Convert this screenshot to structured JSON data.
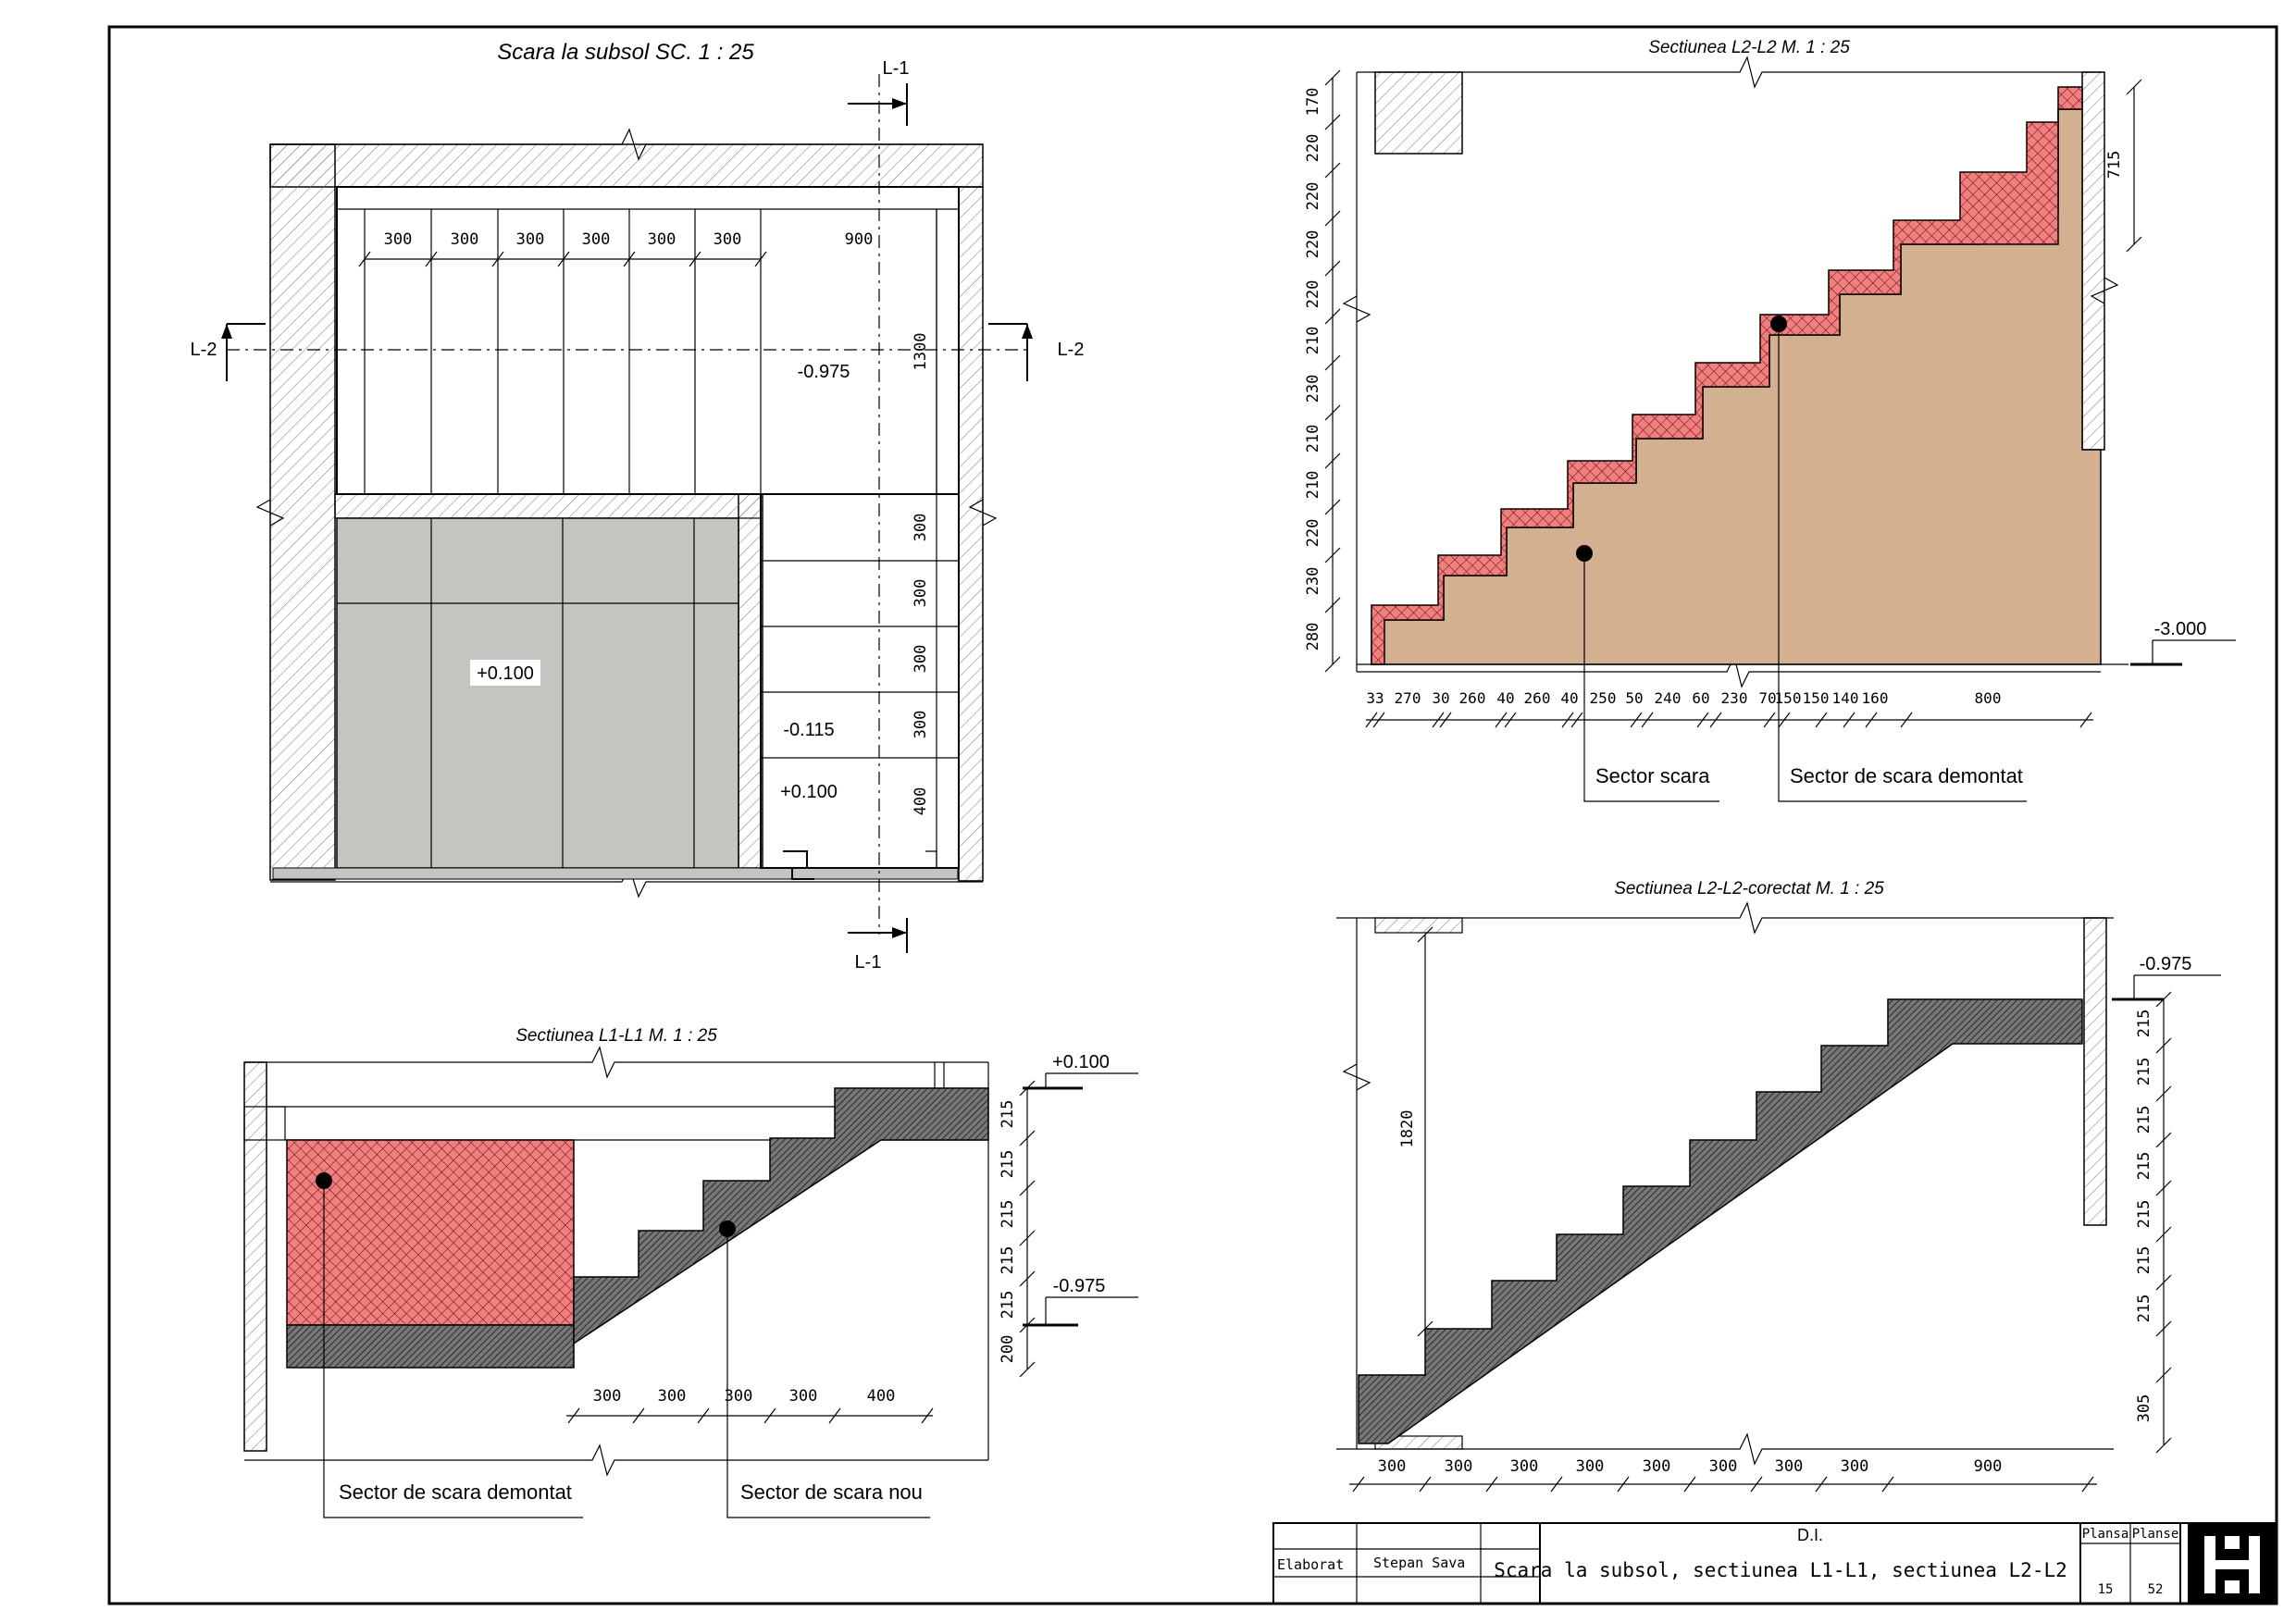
{
  "colors": {
    "demolished_fill": "#f08080",
    "soil_fill": "#d2b090",
    "floor_fill": "#c4c4c0",
    "concrete_fill": "#777777"
  },
  "plan": {
    "title": "Scara la subsol SC. 1 : 25",
    "section_marks": {
      "l1_top": "L-1",
      "l1_bottom": "L-1",
      "l2_left": "L-2",
      "l2_right": "L-2"
    },
    "dims_top": [
      "300",
      "300",
      "300",
      "300",
      "300",
      "300",
      "900"
    ],
    "dim_side_top": "1300",
    "dims_side": [
      "300",
      "300",
      "300",
      "300",
      "400"
    ],
    "levels": {
      "upper_landing": "-0.975",
      "floor": "+0.100",
      "mid": "-0.115",
      "lower": "+0.100"
    }
  },
  "section_l1": {
    "title": "Sectiunea L1-L1  M. 1 : 25",
    "level_top": "+0.100",
    "level_bottom": "-0.975",
    "dims_vertical": [
      "215",
      "215",
      "215",
      "215",
      "215",
      "200"
    ],
    "dims_horizontal": [
      "300",
      "300",
      "300",
      "300",
      "400"
    ],
    "callouts": [
      "Sector de scara demontat",
      "Sector de scara nou"
    ]
  },
  "section_l2": {
    "title": "Sectiunea L2-L2  M. 1 : 25",
    "dims_vertical_left": [
      "170",
      "220",
      "220",
      "220",
      "220",
      "210",
      "230",
      "210",
      "210",
      "220",
      "230",
      "280"
    ],
    "dim_right": "715",
    "level": "-3.000",
    "dims_horizontal": [
      "33",
      "270",
      "30",
      "260",
      "40",
      "260",
      "40",
      "250",
      "50",
      "240",
      "60",
      "230",
      "70",
      "150",
      "150",
      "140",
      "160",
      "800"
    ],
    "callouts": [
      "Sector scara",
      "Sector de scara demontat"
    ]
  },
  "section_l2c": {
    "title": "Sectiunea L2-L2-corectat  M. 1 : 25",
    "dim_height": "1820",
    "level": "-0.975",
    "dims_vertical_right": [
      "215",
      "215",
      "215",
      "215",
      "215",
      "215",
      "215",
      "305"
    ],
    "dims_horizontal": [
      "300",
      "300",
      "300",
      "300",
      "300",
      "300",
      "300",
      "300",
      "900"
    ]
  },
  "title_block": {
    "header": "D.I.",
    "role_label": "Elaborat",
    "author": "Stepan Sava",
    "drawing_title": "Scara la subsol, sectiunea L1-L1, sectiunea L2-L2",
    "sheet_label": "Plansa",
    "sheets_label": "Planse",
    "sheet_no": "15",
    "sheets_total": "52"
  }
}
